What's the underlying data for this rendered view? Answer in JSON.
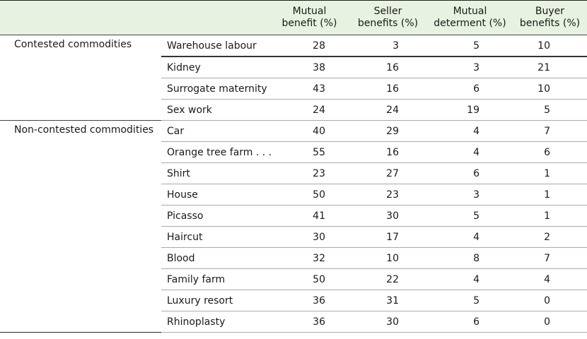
{
  "headers": {
    "col1": "",
    "col2": "",
    "mutual_benefit": [
      "Mutual",
      "benefit (%)"
    ],
    "seller_benefits": [
      "Seller",
      "benefits (%)"
    ],
    "mutual_determent": [
      "Mutual",
      "determent (%)"
    ],
    "buyer_benefits": [
      "Buyer",
      "benefits (%)"
    ]
  },
  "groups": [
    {
      "label": "Contested commodities",
      "rows": [
        {
          "item": "Warehouse labour",
          "mutual_benefit": "28",
          "seller": "3",
          "determent": "5",
          "buyer": "10"
        },
        {
          "item": "Kidney",
          "mutual_benefit": "38",
          "seller": "16",
          "determent": "3",
          "buyer": "21"
        },
        {
          "item": "Surrogate maternity",
          "mutual_benefit": "43",
          "seller": "16",
          "determent": "6",
          "buyer": "10"
        },
        {
          "item": "Sex work",
          "mutual_benefit": "24",
          "seller": "24",
          "determent": "19",
          "buyer": "5"
        }
      ]
    },
    {
      "label": "Non-contested commodities",
      "rows": [
        {
          "item": "Car",
          "mutual_benefit": "40",
          "seller": "29",
          "determent": "4",
          "buyer": "7"
        },
        {
          "item": "Orange tree farm . . .",
          "mutual_benefit": "55",
          "seller": "16",
          "determent": "4",
          "buyer": "6"
        },
        {
          "item": "Shirt",
          "mutual_benefit": "23",
          "seller": "27",
          "determent": "6",
          "buyer": "1"
        },
        {
          "item": "House",
          "mutual_benefit": "50",
          "seller": "23",
          "determent": "3",
          "buyer": "1"
        },
        {
          "item": "Picasso",
          "mutual_benefit": "41",
          "seller": "30",
          "determent": "5",
          "buyer": "1"
        },
        {
          "item": "Haircut",
          "mutual_benefit": "30",
          "seller": "17",
          "determent": "4",
          "buyer": "2"
        },
        {
          "item": "Blood",
          "mutual_benefit": "32",
          "seller": "10",
          "determent": "8",
          "buyer": "7"
        },
        {
          "item": "Family farm",
          "mutual_benefit": "50",
          "seller": "22",
          "determent": "4",
          "buyer": "4"
        },
        {
          "item": "Luxury resort",
          "mutual_benefit": "36",
          "seller": "31",
          "determent": "5",
          "buyer": "0"
        },
        {
          "item": "Rhinoplasty",
          "mutual_benefit": "36",
          "seller": "30",
          "determent": "6",
          "buyer": "0"
        }
      ]
    }
  ]
}
